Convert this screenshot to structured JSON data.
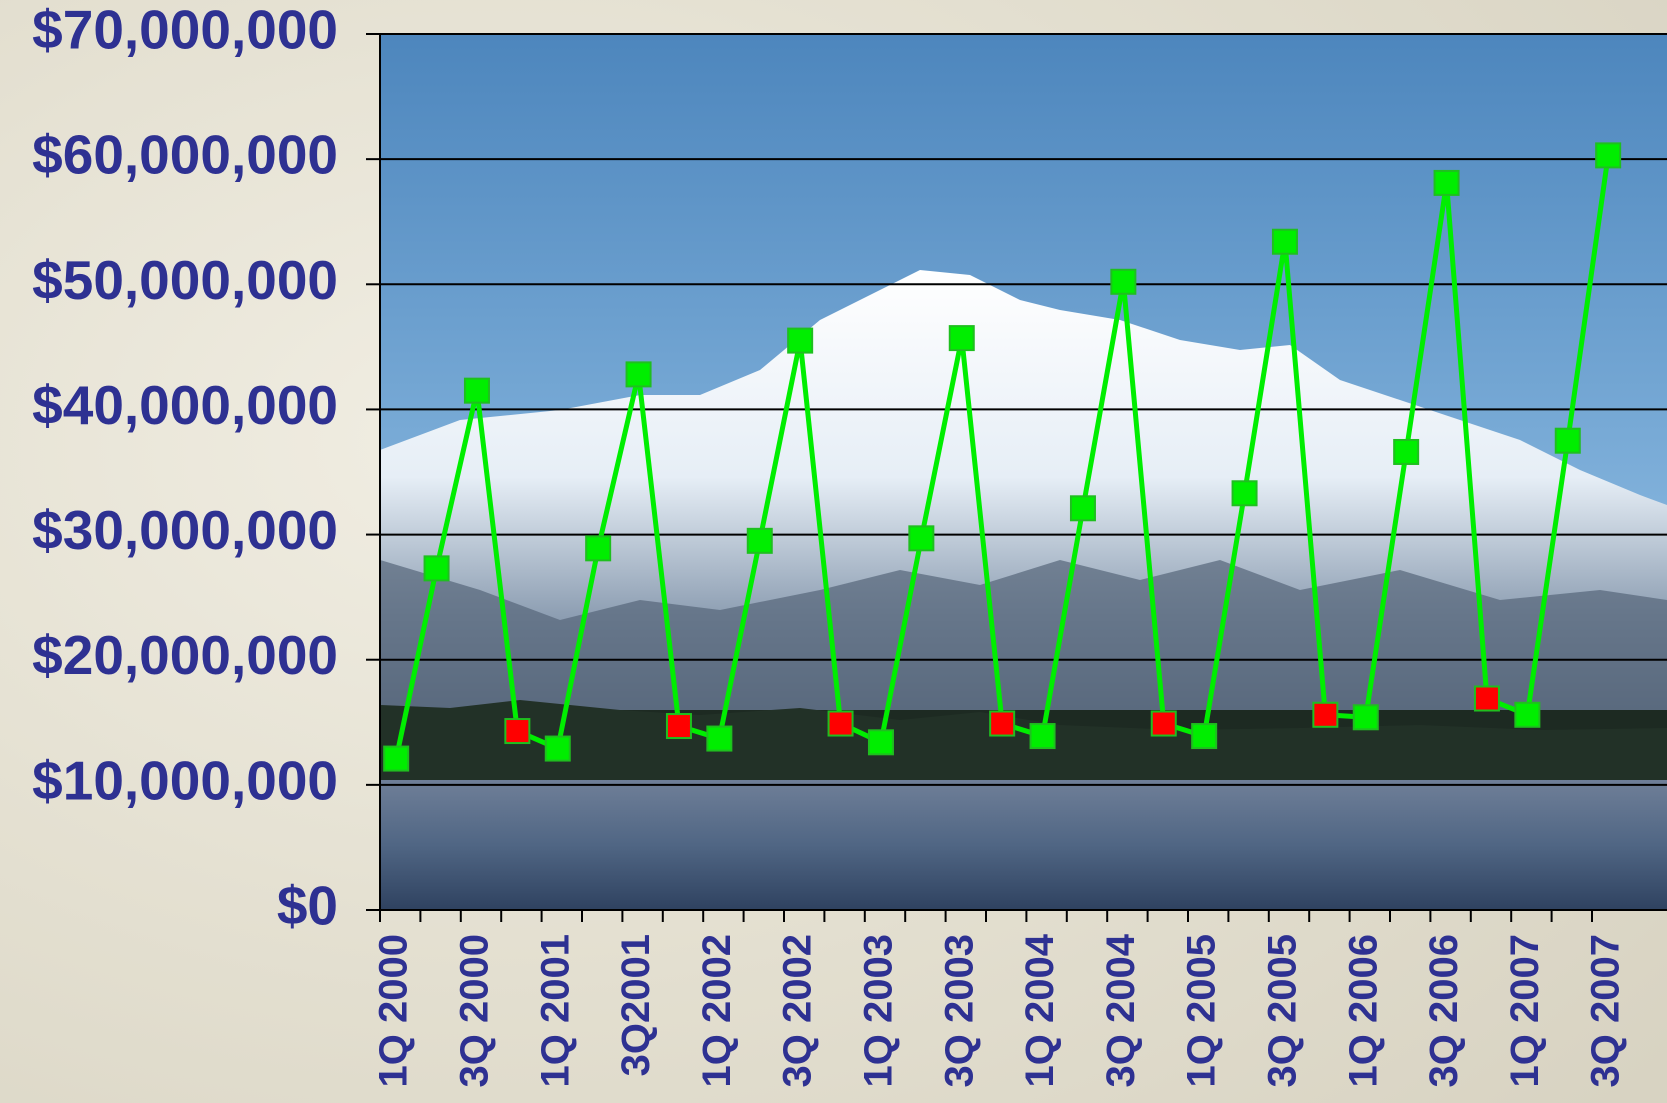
{
  "chart_data": {
    "type": "line",
    "categories": [
      "1Q 2000",
      null,
      "3Q 2000",
      null,
      "1Q 2001",
      null,
      "3Q2001",
      null,
      "1Q 2002",
      null,
      "3Q 2002",
      null,
      "1Q 2003",
      null,
      "3Q 2003",
      null,
      "1Q 2004",
      null,
      "3Q 2004",
      null,
      "1Q 2005",
      null,
      "3Q 2005",
      null,
      "1Q 2006",
      null,
      "3Q 2006",
      null,
      "1Q 2007",
      null,
      "3Q 2007"
    ],
    "values": [
      12100000,
      27300000,
      41500000,
      14300000,
      12900000,
      28900000,
      42800000,
      14700000,
      13700000,
      29500000,
      45500000,
      14900000,
      13400000,
      29700000,
      45700000,
      14900000,
      13900000,
      32100000,
      50200000,
      14900000,
      13900000,
      33300000,
      53400000,
      15600000,
      15400000,
      36600000,
      58100000,
      16900000,
      15600000,
      37500000,
      60300000
    ],
    "color": "#00ee00",
    "marker_colors": [
      "#00ee00",
      "#00ee00",
      "#00ee00",
      "#ff0000",
      "#00ee00",
      "#00ee00",
      "#00ee00",
      "#ff0000",
      "#00ee00",
      "#00ee00",
      "#00ee00",
      "#ff0000",
      "#00ee00",
      "#00ee00",
      "#00ee00",
      "#ff0000",
      "#00ee00",
      "#00ee00",
      "#00ee00",
      "#ff0000",
      "#00ee00",
      "#00ee00",
      "#00ee00",
      "#ff0000",
      "#00ee00",
      "#00ee00",
      "#00ee00",
      "#ff0000",
      "#00ee00",
      "#00ee00",
      "#00ee00"
    ],
    "ylim": [
      0,
      70000000
    ],
    "yticks": [
      {
        "value": 0,
        "label": "$0"
      },
      {
        "value": 10000000,
        "label": "$10,000,000"
      },
      {
        "value": 20000000,
        "label": "$20,000,000"
      },
      {
        "value": 30000000,
        "label": "$30,000,000"
      },
      {
        "value": 40000000,
        "label": "$40,000,000"
      },
      {
        "value": 50000000,
        "label": "$50,000,000"
      },
      {
        "value": 60000000,
        "label": "$60,000,000"
      },
      {
        "value": 70000000,
        "label": "$70,000,000"
      }
    ],
    "grid": true
  }
}
